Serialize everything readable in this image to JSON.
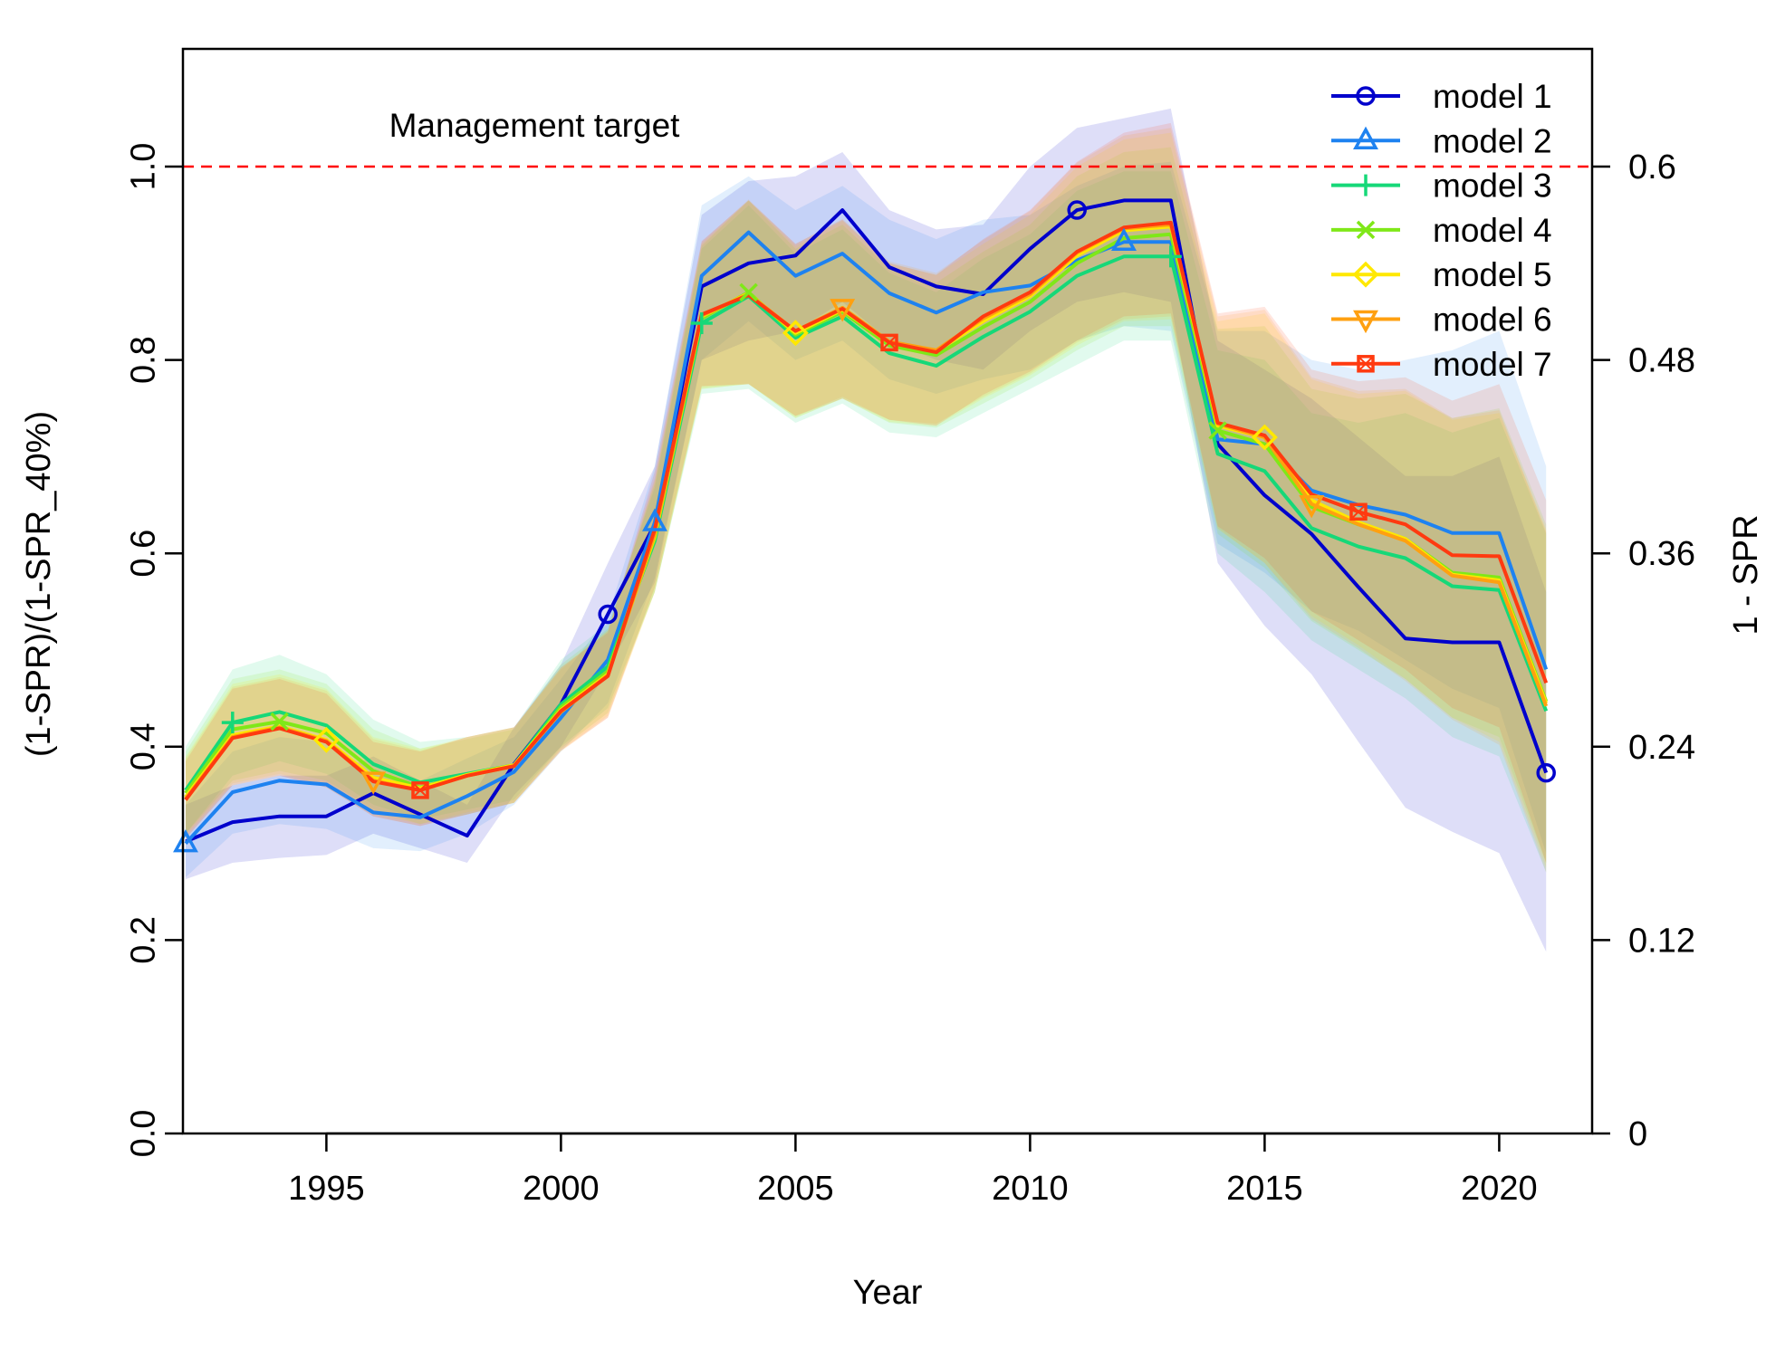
{
  "chart_data": {
    "type": "line",
    "xlabel": "Year",
    "ylabel": "(1-SPR)/(1-SPR_40%)",
    "y2label": "1 - SPR",
    "xlim": [
      1992,
      2021
    ],
    "ylim": [
      0,
      1.1
    ],
    "x_ticks": [
      "1995",
      "2000",
      "2005",
      "2010",
      "2015",
      "2020"
    ],
    "y_ticks": [
      "0.0",
      "0.2",
      "0.4",
      "0.6",
      "0.8",
      "1.0"
    ],
    "y2_ticks": [
      "0",
      "0.12",
      "0.24",
      "0.36",
      "0.48",
      "0.6"
    ],
    "reference_line": {
      "y": 1.0,
      "label": "Management target",
      "color": "#ff0000",
      "style": "dashed"
    },
    "legend_position": "top-right",
    "x": [
      1992,
      1993,
      1994,
      1995,
      1996,
      1997,
      1998,
      1999,
      2000,
      2001,
      2002,
      2003,
      2004,
      2005,
      2006,
      2007,
      2008,
      2009,
      2010,
      2011,
      2012,
      2013,
      2014,
      2015,
      2016,
      2017,
      2018,
      2019,
      2020,
      2021
    ],
    "series": [
      {
        "name": "model 1",
        "color": "#0000cc",
        "marker": "circle",
        "values": [
          0.302,
          0.322,
          0.328,
          0.328,
          0.352,
          0.33,
          0.308,
          0.382,
          0.444,
          0.537,
          0.63,
          0.876,
          0.9,
          0.908,
          0.955,
          0.896,
          0.876,
          0.868,
          0.915,
          0.955,
          0.965,
          0.965,
          0.713,
          0.66,
          0.62,
          0.565,
          0.512,
          0.508,
          0.508,
          0.373
        ],
        "lower": [
          0.263,
          0.28,
          0.285,
          0.288,
          0.31,
          0.295,
          0.28,
          0.35,
          0.4,
          0.48,
          0.57,
          0.8,
          0.82,
          0.83,
          0.86,
          0.82,
          0.8,
          0.79,
          0.83,
          0.86,
          0.87,
          0.86,
          0.59,
          0.525,
          0.475,
          0.405,
          0.337,
          0.312,
          0.29,
          0.188
        ],
        "upper": [
          0.34,
          0.36,
          0.37,
          0.37,
          0.39,
          0.365,
          0.34,
          0.42,
          0.485,
          0.59,
          0.69,
          0.95,
          0.985,
          0.99,
          1.015,
          0.955,
          0.935,
          0.94,
          1.0,
          1.04,
          1.05,
          1.06,
          0.82,
          0.79,
          0.76,
          0.72,
          0.68,
          0.68,
          0.7,
          0.56
        ]
      },
      {
        "name": "model 2",
        "color": "#1e82f0",
        "marker": "triangle",
        "values": [
          0.3,
          0.353,
          0.365,
          0.361,
          0.332,
          0.327,
          0.349,
          0.374,
          0.43,
          0.49,
          0.632,
          0.887,
          0.932,
          0.887,
          0.91,
          0.869,
          0.849,
          0.87,
          0.877,
          0.903,
          0.922,
          0.922,
          0.718,
          0.713,
          0.665,
          0.65,
          0.64,
          0.621,
          0.621,
          0.48
        ],
        "lower": [
          0.265,
          0.31,
          0.32,
          0.315,
          0.295,
          0.292,
          0.31,
          0.34,
          0.395,
          0.445,
          0.575,
          0.8,
          0.84,
          0.8,
          0.82,
          0.78,
          0.765,
          0.78,
          0.79,
          0.82,
          0.835,
          0.83,
          0.61,
          0.58,
          0.54,
          0.52,
          0.49,
          0.46,
          0.44,
          0.29
        ],
        "upper": [
          0.34,
          0.395,
          0.41,
          0.405,
          0.37,
          0.365,
          0.388,
          0.41,
          0.47,
          0.535,
          0.69,
          0.96,
          0.99,
          0.955,
          0.98,
          0.945,
          0.925,
          0.945,
          0.95,
          0.98,
          1.0,
          1.005,
          0.83,
          0.83,
          0.8,
          0.79,
          0.8,
          0.81,
          0.83,
          0.69
        ]
      },
      {
        "name": "model 3",
        "color": "#16d878",
        "marker": "plus",
        "values": [
          0.355,
          0.425,
          0.436,
          0.422,
          0.382,
          0.363,
          0.372,
          0.381,
          0.444,
          0.483,
          0.613,
          0.838,
          0.866,
          0.823,
          0.845,
          0.807,
          0.794,
          0.824,
          0.85,
          0.887,
          0.907,
          0.907,
          0.703,
          0.685,
          0.626,
          0.607,
          0.595,
          0.566,
          0.562,
          0.437
        ],
        "lower": [
          0.31,
          0.37,
          0.385,
          0.372,
          0.34,
          0.325,
          0.335,
          0.345,
          0.4,
          0.44,
          0.56,
          0.765,
          0.77,
          0.735,
          0.755,
          0.725,
          0.72,
          0.745,
          0.77,
          0.795,
          0.82,
          0.82,
          0.6,
          0.56,
          0.51,
          0.48,
          0.45,
          0.41,
          0.39,
          0.27
        ],
        "upper": [
          0.4,
          0.48,
          0.495,
          0.475,
          0.428,
          0.405,
          0.41,
          0.42,
          0.49,
          0.527,
          0.668,
          0.915,
          0.96,
          0.91,
          0.935,
          0.89,
          0.87,
          0.905,
          0.93,
          0.975,
          0.995,
          0.995,
          0.81,
          0.8,
          0.745,
          0.735,
          0.745,
          0.725,
          0.74,
          0.62
        ]
      },
      {
        "name": "model 4",
        "color": "#7fe818",
        "marker": "cross",
        "values": [
          0.352,
          0.418,
          0.426,
          0.414,
          0.375,
          0.358,
          0.37,
          0.38,
          0.441,
          0.478,
          0.616,
          0.843,
          0.87,
          0.826,
          0.85,
          0.815,
          0.805,
          0.834,
          0.86,
          0.9,
          0.926,
          0.93,
          0.727,
          0.713,
          0.648,
          0.63,
          0.615,
          0.58,
          0.575,
          0.447
        ],
        "lower": [
          0.31,
          0.365,
          0.375,
          0.365,
          0.335,
          0.32,
          0.33,
          0.342,
          0.398,
          0.435,
          0.56,
          0.77,
          0.775,
          0.74,
          0.76,
          0.735,
          0.73,
          0.755,
          0.78,
          0.81,
          0.835,
          0.835,
          0.62,
          0.585,
          0.53,
          0.5,
          0.47,
          0.43,
          0.41,
          0.28
        ],
        "upper": [
          0.395,
          0.47,
          0.48,
          0.465,
          0.418,
          0.398,
          0.408,
          0.418,
          0.485,
          0.522,
          0.672,
          0.918,
          0.965,
          0.915,
          0.94,
          0.895,
          0.88,
          0.912,
          0.94,
          0.99,
          1.015,
          1.02,
          0.832,
          0.835,
          0.77,
          0.76,
          0.765,
          0.74,
          0.75,
          0.63
        ]
      },
      {
        "name": "model 5",
        "color": "#ffe800",
        "marker": "diamond",
        "values": [
          0.348,
          0.412,
          0.421,
          0.407,
          0.368,
          0.357,
          0.371,
          0.381,
          0.438,
          0.475,
          0.618,
          0.845,
          0.869,
          0.828,
          0.852,
          0.818,
          0.809,
          0.84,
          0.866,
          0.908,
          0.934,
          0.938,
          0.732,
          0.72,
          0.655,
          0.632,
          0.615,
          0.578,
          0.572,
          0.445
        ],
        "lower": [
          0.308,
          0.362,
          0.372,
          0.36,
          0.33,
          0.32,
          0.332,
          0.342,
          0.396,
          0.432,
          0.56,
          0.77,
          0.775,
          0.74,
          0.76,
          0.736,
          0.732,
          0.76,
          0.784,
          0.815,
          0.84,
          0.842,
          0.625,
          0.59,
          0.535,
          0.505,
          0.47,
          0.43,
          0.405,
          0.275
        ],
        "upper": [
          0.39,
          0.465,
          0.475,
          0.46,
          0.41,
          0.398,
          0.41,
          0.42,
          0.482,
          0.52,
          0.675,
          0.92,
          0.965,
          0.918,
          0.944,
          0.9,
          0.888,
          0.92,
          0.95,
          1.0,
          1.028,
          1.035,
          0.84,
          0.848,
          0.78,
          0.765,
          0.768,
          0.738,
          0.745,
          0.625
        ]
      },
      {
        "name": "model 6",
        "color": "#ffa010",
        "marker": "triangle-down",
        "values": [
          0.346,
          0.41,
          0.42,
          0.406,
          0.365,
          0.355,
          0.37,
          0.38,
          0.436,
          0.474,
          0.62,
          0.846,
          0.868,
          0.83,
          0.854,
          0.819,
          0.81,
          0.843,
          0.868,
          0.911,
          0.936,
          0.94,
          0.734,
          0.72,
          0.651,
          0.63,
          0.613,
          0.577,
          0.57,
          0.442
        ],
        "lower": [
          0.305,
          0.36,
          0.37,
          0.358,
          0.328,
          0.318,
          0.33,
          0.342,
          0.395,
          0.43,
          0.56,
          0.772,
          0.775,
          0.742,
          0.762,
          0.738,
          0.734,
          0.762,
          0.786,
          0.818,
          0.842,
          0.845,
          0.626,
          0.59,
          0.532,
          0.502,
          0.468,
          0.428,
          0.402,
          0.27
        ],
        "upper": [
          0.388,
          0.462,
          0.472,
          0.458,
          0.408,
          0.396,
          0.41,
          0.42,
          0.48,
          0.52,
          0.678,
          0.922,
          0.966,
          0.92,
          0.946,
          0.902,
          0.89,
          0.924,
          0.954,
          1.004,
          1.032,
          1.04,
          0.845,
          0.852,
          0.782,
          0.768,
          0.77,
          0.74,
          0.748,
          0.622
        ]
      },
      {
        "name": "model 7",
        "color": "#ff3a10",
        "marker": "square",
        "values": [
          0.345,
          0.409,
          0.419,
          0.405,
          0.364,
          0.355,
          0.37,
          0.38,
          0.437,
          0.473,
          0.625,
          0.847,
          0.867,
          0.83,
          0.853,
          0.818,
          0.808,
          0.845,
          0.87,
          0.912,
          0.937,
          0.942,
          0.735,
          0.722,
          0.661,
          0.643,
          0.63,
          0.598,
          0.597,
          0.466
        ],
        "lower": [
          0.305,
          0.36,
          0.37,
          0.358,
          0.328,
          0.318,
          0.33,
          0.342,
          0.396,
          0.43,
          0.565,
          0.773,
          0.775,
          0.742,
          0.76,
          0.738,
          0.732,
          0.764,
          0.788,
          0.82,
          0.845,
          0.848,
          0.628,
          0.595,
          0.54,
          0.51,
          0.48,
          0.44,
          0.42,
          0.28
        ],
        "upper": [
          0.385,
          0.46,
          0.47,
          0.455,
          0.405,
          0.395,
          0.41,
          0.42,
          0.482,
          0.518,
          0.685,
          0.923,
          0.965,
          0.92,
          0.945,
          0.9,
          0.888,
          0.925,
          0.955,
          1.005,
          1.035,
          1.045,
          0.848,
          0.855,
          0.79,
          0.778,
          0.782,
          0.758,
          0.775,
          0.655
        ]
      }
    ],
    "marker_points": [
      {
        "series": 0,
        "years": [
          2001,
          2011,
          2021
        ]
      },
      {
        "series": 1,
        "years": [
          1992,
          2002,
          2012
        ]
      },
      {
        "series": 2,
        "years": [
          1993,
          2003,
          2013
        ]
      },
      {
        "series": 3,
        "years": [
          1994,
          2004,
          2014
        ]
      },
      {
        "series": 4,
        "years": [
          1995,
          2005,
          2015
        ]
      },
      {
        "series": 5,
        "years": [
          1996,
          2006,
          2016
        ]
      },
      {
        "series": 6,
        "years": [
          1997,
          2007,
          2017
        ]
      }
    ]
  }
}
